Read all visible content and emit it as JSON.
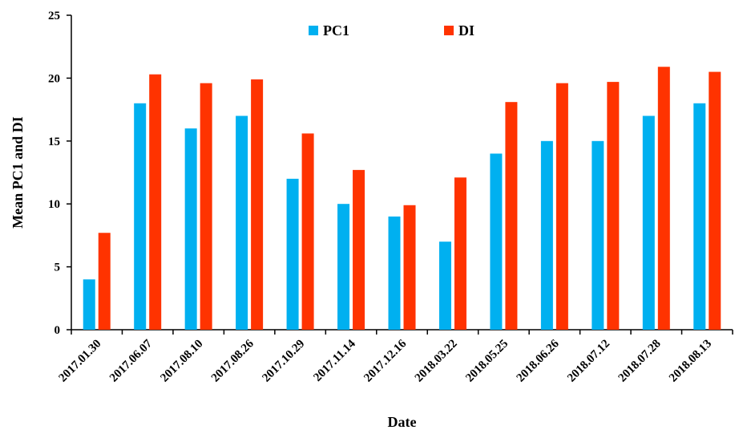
{
  "chart_data": {
    "type": "bar",
    "title": "",
    "xlabel": "Date",
    "ylabel": "Mean PC1 and DI",
    "ylim": [
      0,
      25
    ],
    "yticks": [
      "0",
      "5",
      "10",
      "15",
      "20",
      "25"
    ],
    "grid": false,
    "legend_position": "top-center",
    "categories": [
      "2017.01.30",
      "2017.06.07",
      "2017.08.10",
      "2017.08.26",
      "2017.10.29",
      "2017.11.14",
      "2017.12.16",
      "2018.03.22",
      "2018.05.25",
      "2018.06.26",
      "2018.07.12",
      "2018.07.28",
      "2018.08.13"
    ],
    "series": [
      {
        "name": "PC1",
        "color": "#00b0f0",
        "values": [
          4.0,
          18.0,
          16.0,
          17.0,
          12.0,
          10.0,
          9.0,
          7.0,
          14.0,
          15.0,
          15.0,
          17.0,
          18.0
        ]
      },
      {
        "name": "DI",
        "color": "#ff3300",
        "values": [
          7.7,
          20.3,
          19.6,
          19.9,
          15.6,
          12.7,
          9.9,
          12.1,
          18.1,
          19.6,
          19.7,
          20.9,
          20.5
        ]
      }
    ]
  }
}
